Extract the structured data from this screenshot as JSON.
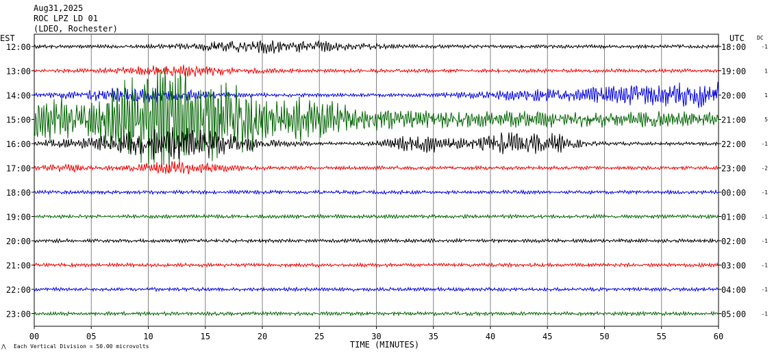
{
  "header": {
    "date": "Aug31,2025",
    "station": "ROC LPZ LD 01",
    "network": "(LDEO, Rochester)"
  },
  "labels": {
    "left_tz": "EST",
    "right_tz": "UTC",
    "dc": "DC",
    "x_title": "TIME (MINUTES)",
    "footer": "Each Vertical Division =   50.00 microvolts"
  },
  "colors": {
    "black": "#000000",
    "red": "#ee0000",
    "blue": "#0000dd",
    "green": "#006400",
    "grid": "#808080"
  },
  "chart_data": {
    "type": "line",
    "title": "",
    "xlabel": "TIME (MINUTES)",
    "ylabel": "",
    "xlim": [
      0,
      60
    ],
    "x_ticks": [
      "00",
      "05",
      "10",
      "15",
      "20",
      "25",
      "30",
      "35",
      "40",
      "45",
      "50",
      "55",
      "60"
    ],
    "vertical_division_microvolts": 50.0,
    "rows": [
      {
        "est": "12:00",
        "utc": "18:00",
        "dc": "-1",
        "color": "black"
      },
      {
        "est": "13:00",
        "utc": "19:00",
        "dc": "1",
        "color": "red"
      },
      {
        "est": "14:00",
        "utc": "20:00",
        "dc": "1",
        "color": "blue"
      },
      {
        "est": "15:00",
        "utc": "21:00",
        "dc": "5",
        "color": "green"
      },
      {
        "est": "16:00",
        "utc": "22:00",
        "dc": "-1",
        "color": "black"
      },
      {
        "est": "17:00",
        "utc": "23:00",
        "dc": "-2",
        "color": "red"
      },
      {
        "est": "18:00",
        "utc": "00:00",
        "dc": "-1",
        "color": "blue"
      },
      {
        "est": "19:00",
        "utc": "01:00",
        "dc": "-1",
        "color": "green"
      },
      {
        "est": "20:00",
        "utc": "02:00",
        "dc": "-1",
        "color": "black"
      },
      {
        "est": "21:00",
        "utc": "03:00",
        "dc": "-1",
        "color": "red"
      },
      {
        "est": "22:00",
        "utc": "04:00",
        "dc": "-1",
        "color": "blue"
      },
      {
        "est": "23:00",
        "utc": "05:00",
        "dc": "-1",
        "color": "green"
      }
    ]
  }
}
